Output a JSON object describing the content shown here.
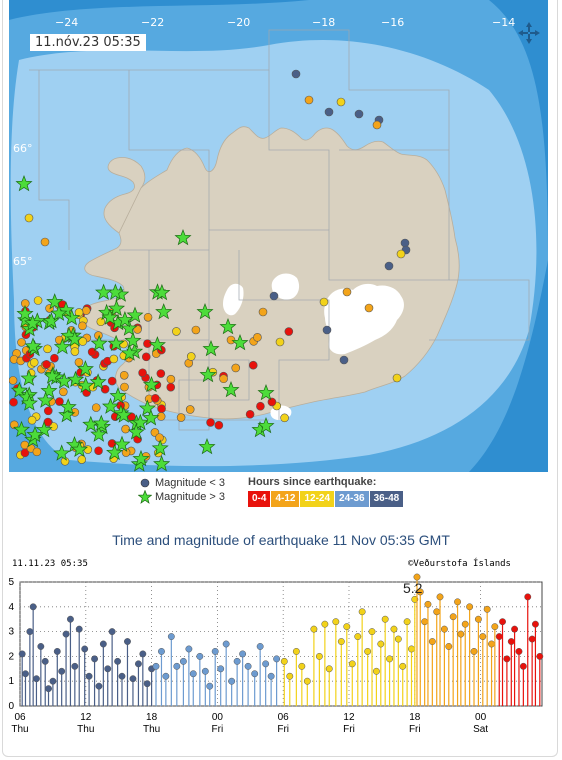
{
  "map": {
    "timestamp": "11.nóv.23  05:35",
    "lat_labels": [
      "66°",
      "65°"
    ],
    "lon_labels": [
      "−24",
      "−22",
      "−20",
      "−18",
      "−16",
      "−14"
    ],
    "colors": {
      "sea_deep": "#2f8ed0",
      "sea_mid": "#56a9e0",
      "sea_shelf": "#9fd0f2",
      "land": "#d9d1c0",
      "ice": "#ffffff",
      "grid": "#a0a7ad"
    },
    "compass_icon": "compass-arrows-icon"
  },
  "legend": {
    "small_label": "Magnitude < 3",
    "large_label": "Magnitude > 3",
    "hours_title": "Hours since earthquake:",
    "hours_bins": [
      {
        "label": "0-4",
        "color": "#e8120c"
      },
      {
        "label": "4-12",
        "color": "#f3a41a"
      },
      {
        "label": "12-24",
        "color": "#f2d21a"
      },
      {
        "label": "24-36",
        "color": "#6d9bd0"
      },
      {
        "label": "36-48",
        "color": "#4a5f87"
      }
    ]
  },
  "chart_title": "Time and magnitude of earthquake   11 Nov 05:35 GMT",
  "chart_data": {
    "type": "scatter",
    "stamp": "11.11.23 05:35",
    "credit": "©Veðurstofa Íslands",
    "ylim": [
      0,
      5
    ],
    "yticks": [
      0,
      1,
      2,
      3,
      4,
      5
    ],
    "x_ticks": [
      {
        "hour": 0,
        "top": "06",
        "bottom": "Thu"
      },
      {
        "hour": 6,
        "top": "12",
        "bottom": "Thu"
      },
      {
        "hour": 12,
        "top": "18",
        "bottom": "Thu"
      },
      {
        "hour": 18,
        "top": "00",
        "bottom": "Fri"
      },
      {
        "hour": 24,
        "top": "06",
        "bottom": "Fri"
      },
      {
        "hour": 30,
        "top": "12",
        "bottom": "Fri"
      },
      {
        "hour": 36,
        "top": "18",
        "bottom": "Fri"
      },
      {
        "hour": 42,
        "top": "00",
        "bottom": "Sat"
      }
    ],
    "xlim_hours": [
      0,
      47.6
    ],
    "annotation": {
      "text": "5.2",
      "hour": 36.2,
      "magnitude": 5.2
    },
    "grid": true,
    "series": [
      {
        "color": "#4a5f87",
        "points": [
          [
            0.2,
            2.1
          ],
          [
            0.5,
            1.3
          ],
          [
            0.9,
            3.0
          ],
          [
            1.2,
            4.0
          ],
          [
            1.5,
            1.1
          ],
          [
            1.9,
            2.4
          ],
          [
            2.3,
            1.8
          ],
          [
            2.6,
            0.7
          ],
          [
            3.0,
            1.0
          ],
          [
            3.4,
            2.2
          ],
          [
            3.8,
            1.4
          ],
          [
            4.2,
            2.9
          ],
          [
            4.6,
            3.5
          ],
          [
            5.0,
            1.6
          ],
          [
            5.4,
            3.1
          ],
          [
            5.9,
            2.3
          ],
          [
            6.3,
            1.2
          ],
          [
            6.8,
            1.9
          ],
          [
            7.2,
            0.8
          ],
          [
            7.6,
            2.5
          ],
          [
            8.0,
            1.5
          ],
          [
            8.4,
            3.0
          ],
          [
            8.9,
            1.8
          ],
          [
            9.3,
            1.2
          ],
          [
            9.8,
            2.6
          ],
          [
            10.3,
            1.1
          ],
          [
            10.8,
            1.7
          ],
          [
            11.2,
            2.1
          ],
          [
            11.6,
            0.9
          ],
          [
            12.0,
            1.5
          ]
        ]
      },
      {
        "color": "#6d9bd0",
        "points": [
          [
            12.4,
            1.6
          ],
          [
            12.9,
            2.2
          ],
          [
            13.3,
            1.2
          ],
          [
            13.8,
            2.8
          ],
          [
            14.3,
            1.6
          ],
          [
            14.9,
            1.8
          ],
          [
            15.4,
            2.3
          ],
          [
            15.8,
            1.3
          ],
          [
            16.4,
            2.0
          ],
          [
            16.9,
            1.4
          ],
          [
            17.3,
            0.8
          ],
          [
            17.8,
            2.2
          ],
          [
            18.3,
            1.5
          ],
          [
            18.8,
            2.5
          ],
          [
            19.3,
            1.0
          ],
          [
            19.8,
            1.8
          ],
          [
            20.3,
            2.1
          ],
          [
            20.8,
            1.6
          ],
          [
            21.4,
            1.3
          ],
          [
            21.9,
            2.4
          ],
          [
            22.4,
            1.7
          ],
          [
            22.9,
            1.2
          ],
          [
            23.4,
            1.9
          ]
        ]
      },
      {
        "color": "#f2d21a",
        "points": [
          [
            24.1,
            1.8
          ],
          [
            24.6,
            1.2
          ],
          [
            25.2,
            2.2
          ],
          [
            25.7,
            1.6
          ],
          [
            26.2,
            1.0
          ],
          [
            26.8,
            3.1
          ],
          [
            27.3,
            2.0
          ],
          [
            27.8,
            3.3
          ],
          [
            28.2,
            1.5
          ],
          [
            28.8,
            3.4
          ],
          [
            29.3,
            2.6
          ],
          [
            29.8,
            3.2
          ],
          [
            30.3,
            1.7
          ],
          [
            30.8,
            2.8
          ],
          [
            31.2,
            3.8
          ],
          [
            31.7,
            2.2
          ],
          [
            32.1,
            3.0
          ],
          [
            32.5,
            1.4
          ],
          [
            32.9,
            2.5
          ],
          [
            33.3,
            3.5
          ],
          [
            33.7,
            1.9
          ],
          [
            34.1,
            3.1
          ],
          [
            34.5,
            2.7
          ],
          [
            34.9,
            1.6
          ],
          [
            35.3,
            3.4
          ],
          [
            35.7,
            2.3
          ],
          [
            36.0,
            4.3
          ]
        ]
      },
      {
        "color": "#f3a41a",
        "points": [
          [
            36.2,
            5.2
          ],
          [
            36.5,
            4.6
          ],
          [
            36.9,
            3.4
          ],
          [
            37.2,
            4.1
          ],
          [
            37.6,
            2.6
          ],
          [
            38.0,
            3.8
          ],
          [
            38.3,
            4.4
          ],
          [
            38.7,
            3.1
          ],
          [
            39.1,
            2.4
          ],
          [
            39.5,
            3.6
          ],
          [
            39.9,
            4.2
          ],
          [
            40.2,
            2.9
          ],
          [
            40.6,
            3.3
          ],
          [
            41.0,
            4.0
          ],
          [
            41.4,
            2.2
          ],
          [
            41.8,
            3.5
          ],
          [
            42.2,
            2.8
          ],
          [
            42.6,
            3.9
          ],
          [
            43.0,
            2.5
          ],
          [
            43.3,
            3.2
          ]
        ]
      },
      {
        "color": "#e8120c",
        "points": [
          [
            43.7,
            2.8
          ],
          [
            44.0,
            3.4
          ],
          [
            44.4,
            1.9
          ],
          [
            44.8,
            2.6
          ],
          [
            45.1,
            3.1
          ],
          [
            45.5,
            2.2
          ],
          [
            45.9,
            1.6
          ],
          [
            46.3,
            4.4
          ],
          [
            46.7,
            2.7
          ],
          [
            47.0,
            3.3
          ],
          [
            47.4,
            2.0
          ]
        ]
      }
    ]
  }
}
